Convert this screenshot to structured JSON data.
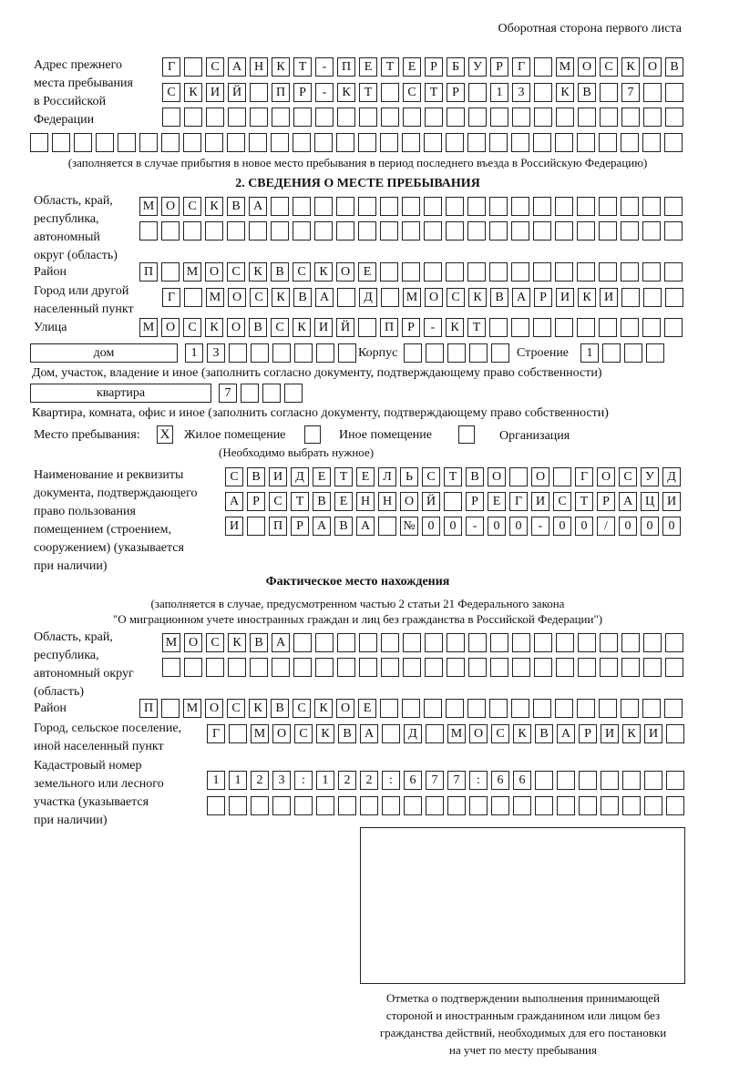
{
  "header": {
    "side_note": "Оборотная сторона первого листа"
  },
  "prev": {
    "label": [
      "Адрес прежнего",
      "места пребывания",
      "в Российской",
      "Федерации"
    ],
    "row1": "Г САНКТ-ПЕТЕРБУРГ МОСКОВ",
    "row2": "СКИЙ ПР-КТ СТР 13 КВ 7  ",
    "row3": "",
    "row4": "",
    "note": "(заполняется в случае прибытия в новое место пребывания в период последнего въезда в Российскую Федерацию)"
  },
  "section2": {
    "title": "2. СВЕДЕНИЯ О МЕСТЕ ПРЕБЫВАНИЯ",
    "region_label": [
      "Область, край,",
      "республика,",
      "автономный",
      "округ (область)"
    ],
    "region1": "МОСКВА",
    "region2": "",
    "district_label": "Район",
    "district": "П МОСКВСКОЕ",
    "city_label": [
      "Город или другой",
      "населенный пункт"
    ],
    "city": "Г МОСКВА Д МОСКВАРИКИ",
    "street_label": "Улица",
    "street": "МОСКОВСКИЙ ПР-КТ",
    "house_type": "дом",
    "house": "13",
    "korpus_label": "Корпус",
    "korpus": "",
    "building_label": "Строение",
    "building": "1",
    "house_note": "Дом, участок, владение и иное (заполнить согласно документу, подтверждающему право собственности)",
    "flat_type": "квартира",
    "flat": "7",
    "flat_note": "Квартира, комната, офис и иное (заполнить согласно документу, подтверждающему право собственности)",
    "place_label": "Место пребывания:",
    "place_options": [
      {
        "label": "Жилое помещение",
        "mark": "Х"
      },
      {
        "label": "Иное помещение",
        "mark": ""
      },
      {
        "label": "Организация",
        "mark": ""
      }
    ],
    "place_hint": "(Необходимо выбрать нужное)",
    "doc_label": [
      "Наименование и реквизиты",
      "документа, подтверждающего",
      "право пользования",
      "помещением (строением,",
      "сооружением) (указывается",
      "при наличии)"
    ],
    "doc1": "СВИДЕТЕЛЬСТВО О ГОСУД",
    "doc2": "АРСТВЕННОЙ РЕГИСТРАЦИ",
    "doc3": "И ПРАВА №00-00-00/000"
  },
  "actual": {
    "title": "Фактическое место нахождения",
    "subtitle": [
      "(заполняется в случае, предусмотренном частью 2 статьи 21 Федерального закона",
      "\"О миграционном учете иностранных граждан и лиц без гражданства в Российской Федерации\")"
    ],
    "region_label": [
      "Область, край,",
      "республика,",
      "автономный округ",
      "(область)"
    ],
    "region1": "МОСКВА",
    "region2": "",
    "district_label": "Район",
    "district": "П МОСКВСКОЕ",
    "city_label": [
      "Город, сельское поселение,",
      "иной населенный пункт"
    ],
    "city": "Г МОСКВА Д МОСКВАРИКИ",
    "cadastre_label": [
      "Кадастровый номер",
      "земельного или лесного",
      "участка (указывается",
      "при наличии)"
    ],
    "cadastre1": "1123:122:677:66",
    "cadastre2": ""
  },
  "stamp": {
    "caption": [
      "Отметка о подтверждении выполнения принимающей",
      "стороной и иностранным гражданином или лицом без",
      "гражданства действий, необходимых для его постановки",
      "на учет по месту пребывания"
    ]
  }
}
